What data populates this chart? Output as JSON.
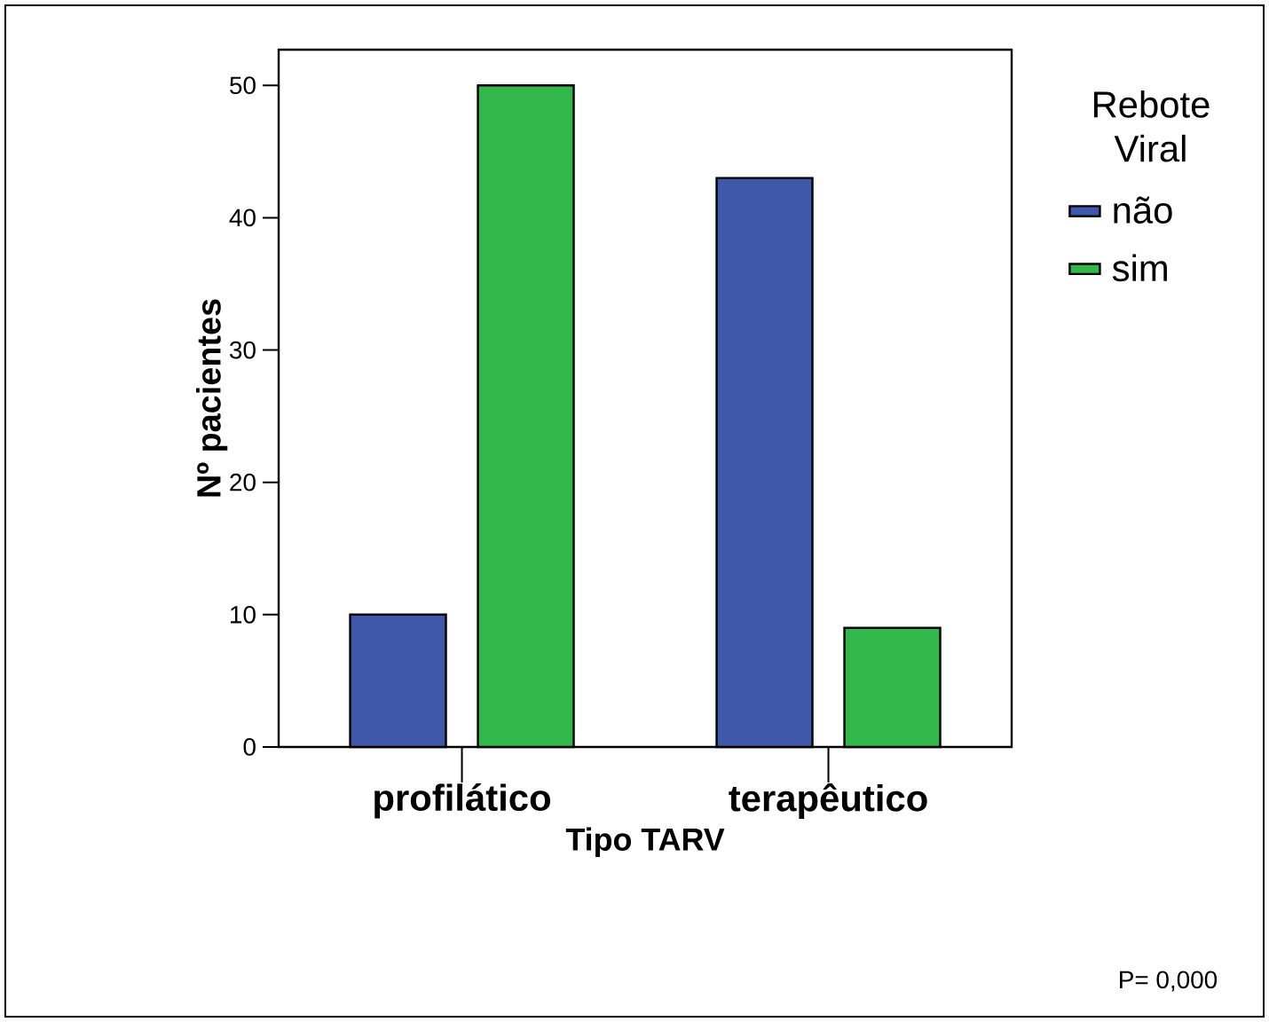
{
  "chart_data": {
    "type": "bar",
    "xlabel": "Tipo TARV",
    "ylabel": "Nº pacientes",
    "legend_title": "Rebote Viral",
    "categories": [
      "profilático",
      "terapêutico"
    ],
    "series": [
      {
        "name": "não",
        "color": "#3f58aa",
        "values": [
          10,
          43
        ]
      },
      {
        "name": "sim",
        "color": "#31b74a",
        "values": [
          50,
          9
        ]
      }
    ],
    "ylim": [
      0,
      52.7
    ],
    "yticks": [
      0,
      10,
      20,
      30,
      40,
      50
    ],
    "grid": false,
    "legend": "right",
    "annotations": [
      "P= 0,000"
    ]
  }
}
